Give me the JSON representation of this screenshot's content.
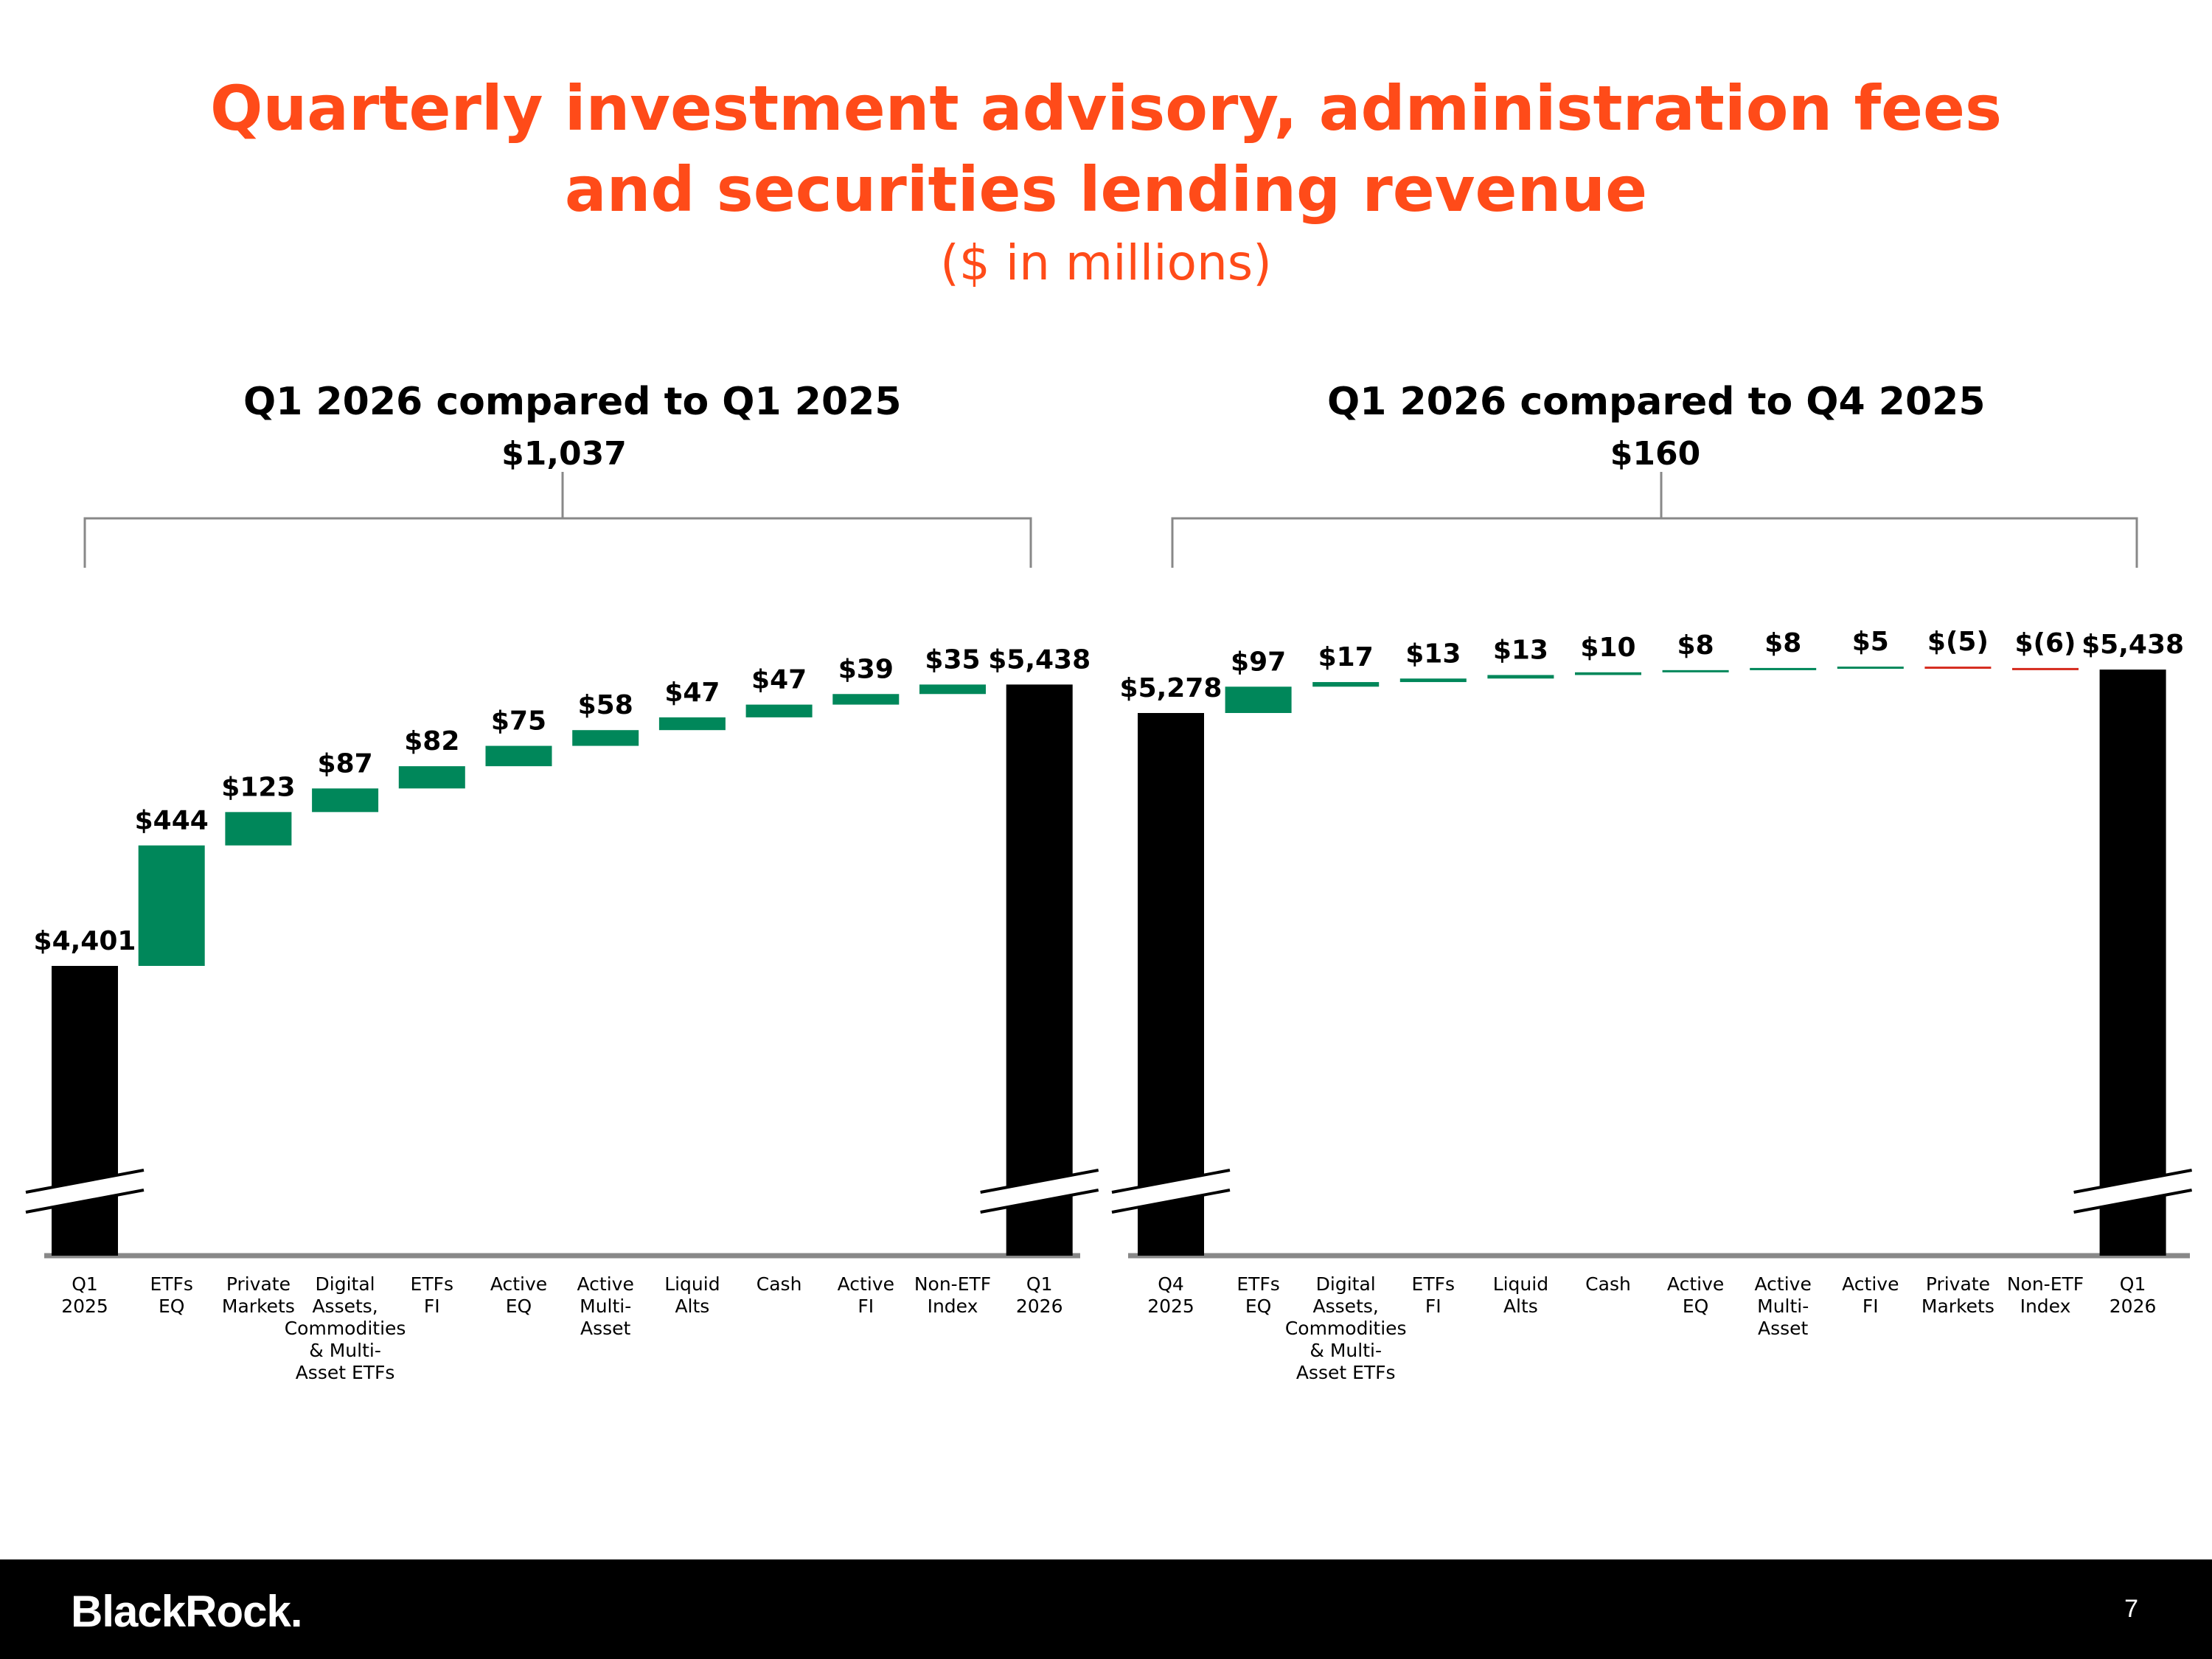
{
  "title_line1": "Quarterly investment advisory, administration fees",
  "title_line2": "and securities lending revenue",
  "subtitle": "($ in millions)",
  "footer": {
    "logo": "BlackRock.",
    "page_number": "7"
  },
  "colors": {
    "accent": "#ff4b19",
    "increase": "#00875a",
    "decrease": "#d52b1e",
    "total": "#000000",
    "axis": "#888888"
  },
  "chart_data": [
    {
      "type": "bar",
      "subtype": "waterfall",
      "title": "Q1 2026 compared to Q1 2025",
      "total_change_label": "$1,037",
      "broken_axis": true,
      "categories": [
        [
          "Q1",
          "2025"
        ],
        [
          "ETFs",
          "EQ"
        ],
        [
          "Private",
          "Markets"
        ],
        [
          "Digital",
          "Assets,",
          "Commodities",
          "& Multi-",
          "Asset ETFs"
        ],
        [
          "ETFs",
          "FI"
        ],
        [
          "Active",
          "EQ"
        ],
        [
          "Active",
          "Multi-",
          "Asset"
        ],
        [
          "Liquid",
          "Alts"
        ],
        [
          "Cash"
        ],
        [
          "Active",
          "FI"
        ],
        [
          "Non-ETF",
          "Index"
        ],
        [
          "Q1",
          "2026"
        ]
      ],
      "kinds": [
        "total",
        "delta",
        "delta",
        "delta",
        "delta",
        "delta",
        "delta",
        "delta",
        "delta",
        "delta",
        "delta",
        "total"
      ],
      "values": [
        4401,
        444,
        123,
        87,
        82,
        75,
        58,
        47,
        47,
        39,
        35,
        5438
      ],
      "labels": [
        "$4,401",
        "$444",
        "$123",
        "$87",
        "$82",
        "$75",
        "$58",
        "$47",
        "$47",
        "$39",
        "$35",
        "$5,438"
      ]
    },
    {
      "type": "bar",
      "subtype": "waterfall",
      "title": "Q1 2026 compared to Q4 2025",
      "total_change_label": "$160",
      "broken_axis": true,
      "categories": [
        [
          "Q4",
          "2025"
        ],
        [
          "ETFs",
          "EQ"
        ],
        [
          "Digital",
          "Assets,",
          "Commodities",
          "& Multi-",
          "Asset ETFs"
        ],
        [
          "ETFs",
          "FI"
        ],
        [
          "Liquid",
          "Alts"
        ],
        [
          "Cash"
        ],
        [
          "Active",
          "EQ"
        ],
        [
          "Active",
          "Multi-",
          "Asset"
        ],
        [
          "Active",
          "FI"
        ],
        [
          "Private",
          "Markets"
        ],
        [
          "Non-ETF",
          "Index"
        ],
        [
          "Q1",
          "2026"
        ]
      ],
      "kinds": [
        "total",
        "delta",
        "delta",
        "delta",
        "delta",
        "delta",
        "delta",
        "delta",
        "delta",
        "delta",
        "delta",
        "total"
      ],
      "values": [
        5278,
        97,
        17,
        13,
        13,
        10,
        8,
        8,
        5,
        -5,
        -6,
        5438
      ],
      "labels": [
        "$5,278",
        "$97",
        "$17",
        "$13",
        "$13",
        "$10",
        "$8",
        "$8",
        "$5",
        "$(5)",
        "$(6)",
        "$5,438"
      ]
    }
  ]
}
